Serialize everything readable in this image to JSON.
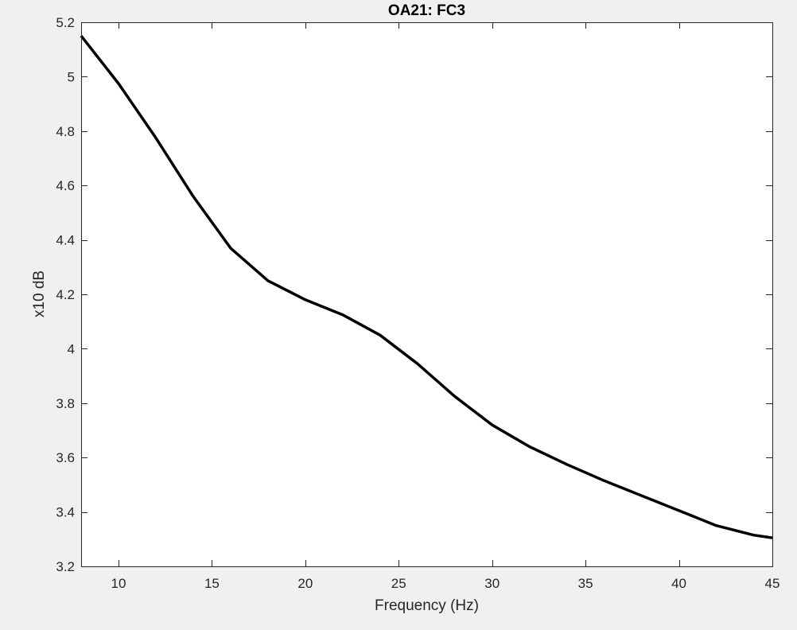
{
  "figure": {
    "background": "#f0f0f0",
    "axes_background": "#ffffff",
    "axis_color": "#262626",
    "line_color": "#000000"
  },
  "chart_data": {
    "type": "line",
    "title": "OA21: FC3",
    "xlabel": "Frequency (Hz)",
    "ylabel": "x10 dB",
    "xlim": [
      8,
      45
    ],
    "ylim": [
      3.2,
      5.2
    ],
    "xticks": [
      10,
      15,
      20,
      25,
      30,
      35,
      40,
      45
    ],
    "yticks": [
      3.2,
      3.4,
      3.6,
      3.8,
      4,
      4.2,
      4.4,
      4.6,
      4.8,
      5,
      5.2
    ],
    "grid": false,
    "series": [
      {
        "x": [
          8,
          10,
          12,
          14,
          16,
          18,
          20,
          22,
          24,
          26,
          28,
          30,
          32,
          34,
          36,
          38,
          40,
          42,
          44,
          45
        ],
        "y": [
          5.15,
          4.975,
          4.775,
          4.56,
          4.37,
          4.25,
          4.18,
          4.125,
          4.05,
          3.945,
          3.825,
          3.72,
          3.64,
          3.575,
          3.515,
          3.46,
          3.405,
          3.35,
          3.315,
          3.305
        ]
      }
    ]
  }
}
